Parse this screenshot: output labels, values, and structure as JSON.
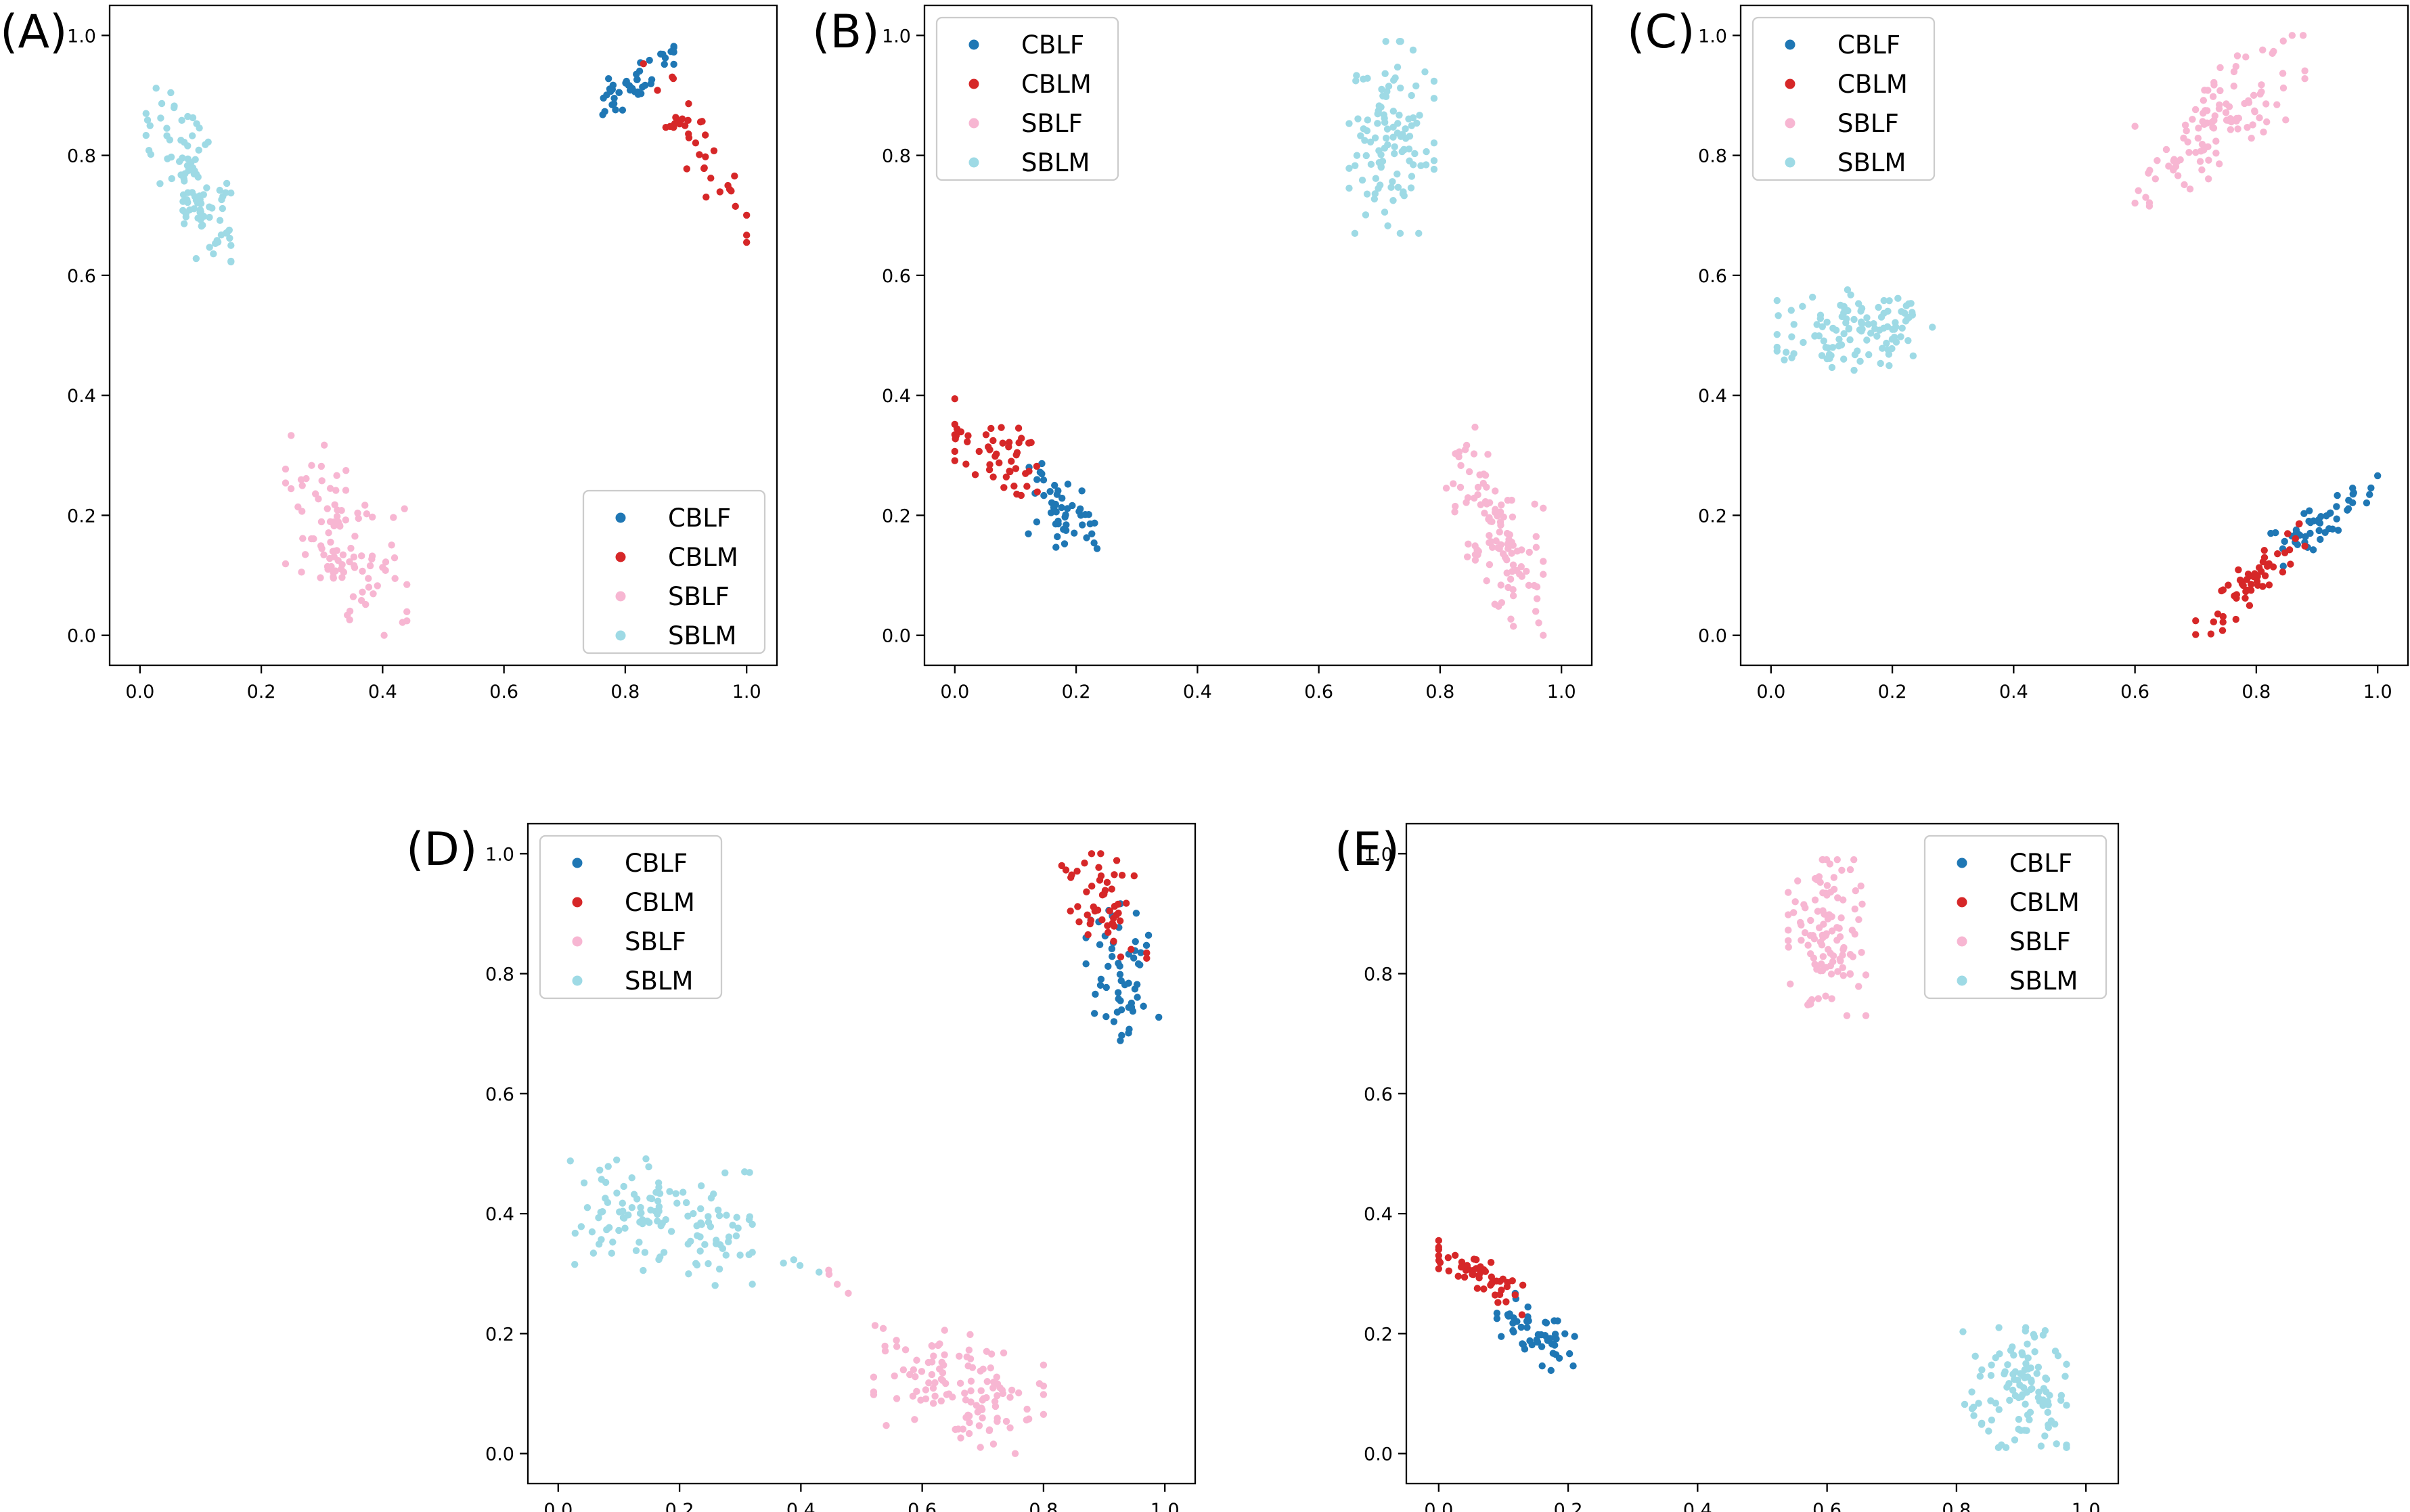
{
  "figure": {
    "panel_labels": [
      "(A)",
      "(B)",
      "(C)",
      "(D)",
      "(E)"
    ]
  },
  "chart_data": [
    {
      "type": "scatter",
      "panel": "(A)",
      "xlim": [
        0.0,
        1.0
      ],
      "ylim": [
        0.0,
        1.0
      ],
      "xticks": [
        "0.0",
        "0.2",
        "0.4",
        "0.6",
        "0.8",
        "1.0"
      ],
      "yticks": [
        "0.0",
        "0.2",
        "0.4",
        "0.6",
        "0.8",
        "1.0"
      ],
      "legend_position": "lower-right",
      "series": [
        {
          "name": "CBLF",
          "color": "#1f77b4",
          "clusters": [
            {
              "cx": 0.81,
              "cy": 0.92,
              "sx": 0.035,
              "sy": 0.03,
              "r": 0.82,
              "n": 45
            }
          ]
        },
        {
          "name": "CBLM",
          "color": "#d62728",
          "clusters": [
            {
              "cx": 0.92,
              "cy": 0.81,
              "sx": 0.045,
              "sy": 0.07,
              "r": -0.9,
              "n": 38
            }
          ]
        },
        {
          "name": "SBLF",
          "color": "#f7b6d2",
          "clusters": [
            {
              "cx": 0.34,
              "cy": 0.16,
              "sx": 0.05,
              "sy": 0.075,
              "r": -0.5,
              "n": 105
            }
          ]
        },
        {
          "name": "SBLM",
          "color": "#9edae5",
          "clusters": [
            {
              "cx": 0.08,
              "cy": 0.76,
              "sx": 0.035,
              "sy": 0.08,
              "r": -0.7,
              "n": 100
            }
          ]
        }
      ]
    },
    {
      "type": "scatter",
      "panel": "(B)",
      "xlim": [
        0.0,
        1.0
      ],
      "ylim": [
        0.0,
        1.0
      ],
      "xticks": [
        "0.0",
        "0.2",
        "0.4",
        "0.6",
        "0.8",
        "1.0"
      ],
      "yticks": [
        "0.0",
        "0.2",
        "0.4",
        "0.6",
        "0.8",
        "1.0"
      ],
      "legend_position": "upper-left",
      "series": [
        {
          "name": "CBLF",
          "color": "#1f77b4",
          "clusters": [
            {
              "cx": 0.18,
              "cy": 0.2,
              "sx": 0.03,
              "sy": 0.04,
              "r": -0.4,
              "n": 50
            }
          ]
        },
        {
          "name": "CBLM",
          "color": "#d62728",
          "clusters": [
            {
              "cx": 0.07,
              "cy": 0.31,
              "sx": 0.04,
              "sy": 0.04,
              "r": -0.6,
              "n": 50
            }
          ]
        },
        {
          "name": "SBLF",
          "color": "#f7b6d2",
          "clusters": [
            {
              "cx": 0.89,
              "cy": 0.18,
              "sx": 0.04,
              "sy": 0.08,
              "r": -0.6,
              "n": 110
            }
          ]
        },
        {
          "name": "SBLM",
          "color": "#9edae5",
          "clusters": [
            {
              "cx": 0.72,
              "cy": 0.83,
              "sx": 0.035,
              "sy": 0.08,
              "r": 0.0,
              "n": 110
            }
          ]
        }
      ]
    },
    {
      "type": "scatter",
      "panel": "(C)",
      "xlim": [
        0.0,
        1.0
      ],
      "ylim": [
        0.0,
        1.0
      ],
      "xticks": [
        "0.0",
        "0.2",
        "0.4",
        "0.6",
        "0.8",
        "1.0"
      ],
      "yticks": [
        "0.0",
        "0.2",
        "0.4",
        "0.6",
        "0.8",
        "1.0"
      ],
      "legend_position": "upper-left",
      "series": [
        {
          "name": "CBLF",
          "color": "#1f77b4",
          "clusters": [
            {
              "cx": 0.91,
              "cy": 0.19,
              "sx": 0.045,
              "sy": 0.035,
              "r": 0.85,
              "n": 50
            }
          ]
        },
        {
          "name": "CBLM",
          "color": "#d62728",
          "clusters": [
            {
              "cx": 0.79,
              "cy": 0.09,
              "sx": 0.045,
              "sy": 0.05,
              "r": 0.92,
              "n": 55
            }
          ]
        },
        {
          "name": "SBLF",
          "color": "#f7b6d2",
          "clusters": [
            {
              "cx": 0.74,
              "cy": 0.86,
              "sx": 0.07,
              "sy": 0.065,
              "r": 0.75,
              "n": 110
            }
          ]
        },
        {
          "name": "SBLM",
          "color": "#9edae5",
          "clusters": [
            {
              "cx": 0.14,
              "cy": 0.51,
              "sx": 0.065,
              "sy": 0.035,
              "r": 0.25,
              "n": 115
            }
          ]
        }
      ]
    },
    {
      "type": "scatter",
      "panel": "(D)",
      "xlim": [
        0.0,
        1.0
      ],
      "ylim": [
        0.0,
        1.0
      ],
      "xticks": [
        "0.0",
        "0.2",
        "0.4",
        "0.6",
        "0.8",
        "1.0"
      ],
      "yticks": [
        "0.0",
        "0.2",
        "0.4",
        "0.6",
        "0.8",
        "1.0"
      ],
      "legend_position": "upper-left",
      "series": [
        {
          "name": "CBLF",
          "color": "#1f77b4",
          "clusters": [
            {
              "cx": 0.93,
              "cy": 0.8,
              "sx": 0.03,
              "sy": 0.06,
              "r": -0.3,
              "n": 55
            }
          ]
        },
        {
          "name": "CBLM",
          "color": "#d62728",
          "clusters": [
            {
              "cx": 0.9,
              "cy": 0.92,
              "sx": 0.035,
              "sy": 0.05,
              "r": -0.4,
              "n": 50
            }
          ]
        },
        {
          "name": "SBLF",
          "color": "#f7b6d2",
          "clusters": [
            {
              "cx": 0.66,
              "cy": 0.11,
              "sx": 0.07,
              "sy": 0.05,
              "r": -0.3,
              "n": 120
            },
            {
              "cx": 0.45,
              "cy": 0.28,
              "sx": 0.02,
              "sy": 0.02,
              "r": 0.0,
              "n": 4
            }
          ]
        },
        {
          "name": "SBLM",
          "color": "#9edae5",
          "clusters": [
            {
              "cx": 0.17,
              "cy": 0.39,
              "sx": 0.075,
              "sy": 0.05,
              "r": -0.2,
              "n": 125
            },
            {
              "cx": 0.4,
              "cy": 0.31,
              "sx": 0.015,
              "sy": 0.015,
              "r": 0.0,
              "n": 4
            }
          ]
        }
      ]
    },
    {
      "type": "scatter",
      "panel": "(E)",
      "xlim": [
        0.0,
        1.0
      ],
      "ylim": [
        0.0,
        1.0
      ],
      "xticks": [
        "0.0",
        "0.2",
        "0.4",
        "0.6",
        "0.8",
        "1.0"
      ],
      "yticks": [
        "0.0",
        "0.2",
        "0.4",
        "0.6",
        "0.8",
        "1.0"
      ],
      "legend_position": "upper-right",
      "series": [
        {
          "name": "CBLF",
          "color": "#1f77b4",
          "clusters": [
            {
              "cx": 0.15,
              "cy": 0.2,
              "sx": 0.03,
              "sy": 0.03,
              "r": -0.6,
              "n": 50
            }
          ]
        },
        {
          "name": "CBLM",
          "color": "#d62728",
          "clusters": [
            {
              "cx": 0.06,
              "cy": 0.3,
              "sx": 0.035,
              "sy": 0.025,
              "r": -0.75,
              "n": 50
            }
          ]
        },
        {
          "name": "SBLF",
          "color": "#f7b6d2",
          "clusters": [
            {
              "cx": 0.6,
              "cy": 0.86,
              "sx": 0.03,
              "sy": 0.065,
              "r": 0.0,
              "n": 110
            }
          ]
        },
        {
          "name": "SBLM",
          "color": "#9edae5",
          "clusters": [
            {
              "cx": 0.89,
              "cy": 0.11,
              "sx": 0.04,
              "sy": 0.05,
              "r": 0.0,
              "n": 110
            }
          ]
        }
      ]
    }
  ]
}
